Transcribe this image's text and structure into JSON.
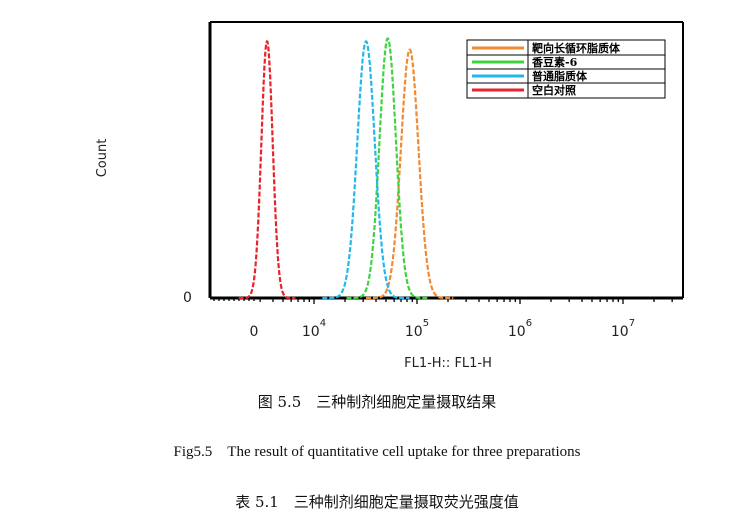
{
  "chart_data": {
    "type": "line",
    "xlabel": "FL1-H:: FL1-H",
    "ylabel": "Count",
    "y_ticks": [
      {
        "label": "0",
        "value": 0
      }
    ],
    "x_ticks": [
      {
        "base": "0",
        "exp": "",
        "value": 0
      },
      {
        "base": "10",
        "exp": "4",
        "value": 10000
      },
      {
        "base": "10",
        "exp": "5",
        "value": 100000
      },
      {
        "base": "10",
        "exp": "6",
        "value": 1000000
      },
      {
        "base": "10",
        "exp": "7",
        "value": 10000000
      }
    ],
    "x_scale": "biexponential (log)",
    "legend_position": "top-right",
    "grid": false,
    "series": [
      {
        "name": "靶向长循环脂质体",
        "color": "#f28a30",
        "peak_x": 85000,
        "peak_y": 0.9,
        "width": 0.085
      },
      {
        "name": "香豆素-6",
        "color": "#3fd43f",
        "peak_x": 52000,
        "peak_y": 0.94,
        "width": 0.08
      },
      {
        "name": "普通脂质体",
        "color": "#22b8ec",
        "peak_x": 32000,
        "peak_y": 0.93,
        "width": 0.085
      },
      {
        "name": "空白对照",
        "color": "#e8232b",
        "peak_x": 3500,
        "peak_y": 0.93,
        "width": 0.055
      }
    ]
  },
  "captions": {
    "figure_cn": "图 5.5　三种制剂细胞定量摄取结果",
    "figure_en": "Fig5.5　The result of quantitative cell uptake for three preparations",
    "table_cn": "表 5.1　三种制剂细胞定量摄取荧光强度值"
  }
}
